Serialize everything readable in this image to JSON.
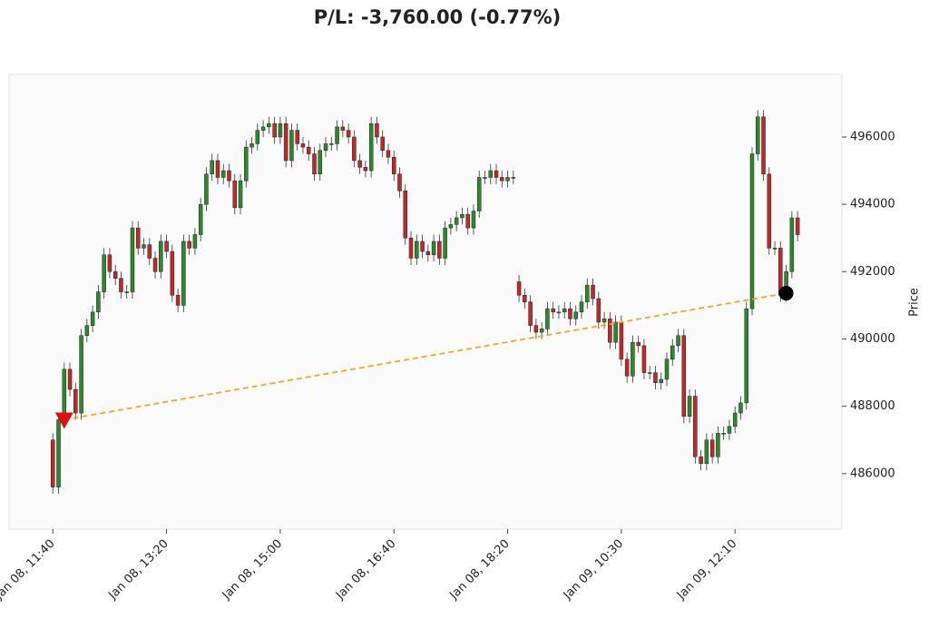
{
  "chart_data": {
    "type": "candlestick",
    "title": "P/L: -3,760.00 (-0.77%)",
    "y_label": "Price",
    "up_color": "#2a8a2a",
    "down_color": "#c0282a",
    "trade_line_color": "#f5a623",
    "ylim": [
      484350,
      497860
    ],
    "yticks": [
      486000,
      488000,
      490000,
      492000,
      494000,
      496000
    ],
    "xlim": [
      -7.7,
      138.8
    ],
    "xticks": [
      {
        "value": 0,
        "label": "Jan 08, 11:40"
      },
      {
        "value": 20,
        "label": "Jan 08, 13:20"
      },
      {
        "value": 40,
        "label": "Jan 08, 15:00"
      },
      {
        "value": 60,
        "label": "Jan 08, 16:40"
      },
      {
        "value": 80,
        "label": "Jan 08, 18:20"
      },
      {
        "value": 100,
        "label": "Jan 09, 10:30"
      },
      {
        "value": 120,
        "label": "Jan 09, 12:10"
      }
    ],
    "open": [
      487000,
      485600,
      487600,
      489100,
      488500,
      487800,
      490100,
      490400,
      490800,
      491400,
      492500,
      492000,
      491800,
      491400,
      491400,
      493300,
      492700,
      492800,
      492400,
      492000,
      492900,
      492600,
      491300,
      491000,
      492900,
      492700,
      493100,
      494000,
      494900,
      495300,
      494800,
      495000,
      494700,
      493900,
      494700,
      495700,
      495800,
      496200,
      496300,
      496400,
      496000,
      496400,
      495300,
      496200,
      495800,
      495700,
      495500,
      494900,
      495600,
      495800,
      495800,
      496300,
      496200,
      496000,
      495300,
      495100,
      495000,
      496400,
      496000,
      495600,
      495400,
      494900,
      494400,
      493000,
      492400,
      492900,
      492600,
      492500,
      492900,
      492400,
      493300,
      493400,
      493600,
      493700,
      493300,
      493800,
      494800,
      494800,
      495000,
      494800,
      494700,
      494800,
      491700,
      491300,
      491100,
      490400,
      490200,
      490300,
      490900,
      490800,
      490800,
      490900,
      490600,
      490800,
      491100,
      491600,
      491200,
      490500,
      490600,
      489900,
      490500,
      489400,
      488900,
      489900,
      489800,
      489000,
      489000,
      488700,
      488800,
      489400,
      489800,
      490100,
      487700,
      488300,
      486500,
      486300,
      487000,
      486500,
      487200,
      487200,
      487400,
      487800,
      488100,
      490900,
      495500,
      496600,
      494900,
      492700,
      492700,
      491300,
      492000,
      493600
    ],
    "high": [
      487200,
      487800,
      489300,
      489300,
      488700,
      490300,
      490600,
      491000,
      491600,
      492700,
      492700,
      492200,
      492000,
      491600,
      493500,
      493500,
      493000,
      493000,
      492600,
      493100,
      493100,
      492800,
      491500,
      493100,
      493100,
      493300,
      494200,
      495100,
      495500,
      495500,
      495200,
      495200,
      494900,
      494900,
      495900,
      496000,
      496400,
      496500,
      496600,
      496600,
      496600,
      496600,
      496400,
      496400,
      496000,
      495900,
      495700,
      495800,
      496000,
      496000,
      496500,
      496500,
      496400,
      496200,
      495500,
      495300,
      496600,
      496600,
      496200,
      495800,
      495600,
      495100,
      494600,
      493200,
      493100,
      493100,
      492800,
      493100,
      493100,
      493500,
      493600,
      493800,
      493900,
      493900,
      494000,
      495000,
      495000,
      495200,
      495200,
      495000,
      495000,
      495000,
      491900,
      491500,
      491300,
      490600,
      490500,
      491100,
      491100,
      491000,
      491100,
      491100,
      491000,
      491300,
      491800,
      491800,
      491400,
      490800,
      490800,
      490700,
      490700,
      489600,
      490100,
      490100,
      490000,
      489200,
      489200,
      489000,
      489600,
      490000,
      490300,
      490300,
      488500,
      488500,
      486700,
      487200,
      487200,
      487400,
      487400,
      487600,
      488000,
      488300,
      491100,
      495700,
      496800,
      496800,
      495100,
      492900,
      492900,
      492200,
      493800,
      493800
    ],
    "low": [
      485400,
      485400,
      487400,
      488300,
      487600,
      487600,
      489900,
      490200,
      490600,
      491200,
      491800,
      491600,
      491200,
      491200,
      491200,
      492500,
      492500,
      492200,
      491800,
      491800,
      492400,
      491100,
      490800,
      490800,
      492500,
      492500,
      492900,
      493800,
      494700,
      494600,
      494600,
      494500,
      493700,
      493700,
      494500,
      495500,
      495600,
      496000,
      496100,
      495800,
      495800,
      495100,
      495100,
      495600,
      495500,
      495300,
      494700,
      494700,
      495400,
      495600,
      495600,
      496000,
      495800,
      495100,
      494900,
      494800,
      494800,
      495800,
      495400,
      495200,
      494700,
      494200,
      492800,
      492200,
      492200,
      492400,
      492300,
      492300,
      492200,
      492200,
      493100,
      493200,
      493400,
      493100,
      493100,
      493600,
      494600,
      494600,
      494600,
      494500,
      494500,
      494600,
      491100,
      490900,
      490200,
      490000,
      490000,
      490100,
      490600,
      490600,
      490600,
      490400,
      490400,
      490600,
      490900,
      491000,
      490300,
      490300,
      489700,
      489700,
      489200,
      488700,
      488700,
      489600,
      488800,
      488800,
      488500,
      488500,
      488600,
      489200,
      489600,
      487500,
      487500,
      486300,
      486100,
      486100,
      486300,
      486300,
      487000,
      487000,
      487200,
      487600,
      487900,
      490700,
      495300,
      494700,
      492500,
      492500,
      491100,
      491100,
      491800,
      492900
    ],
    "close": [
      485600,
      487600,
      489100,
      488500,
      487800,
      490100,
      490400,
      490800,
      491400,
      492500,
      492000,
      491800,
      491400,
      491400,
      493300,
      492700,
      492800,
      492400,
      492000,
      492900,
      492600,
      491300,
      491000,
      492900,
      492700,
      493100,
      494000,
      494900,
      495300,
      494800,
      495000,
      494700,
      493900,
      494700,
      495700,
      495800,
      496200,
      496300,
      496400,
      496000,
      496400,
      495300,
      496200,
      495800,
      495700,
      495500,
      494900,
      495600,
      495800,
      495800,
      496300,
      496200,
      496000,
      495300,
      495100,
      495000,
      496400,
      496000,
      495600,
      495400,
      494900,
      494400,
      493000,
      492400,
      492900,
      492600,
      492500,
      492900,
      492400,
      493300,
      493400,
      493600,
      493700,
      493300,
      493800,
      494800,
      494800,
      495000,
      494800,
      494700,
      494800,
      494800,
      491300,
      491100,
      490400,
      490200,
      490300,
      490900,
      490800,
      490800,
      490900,
      490600,
      490800,
      491100,
      491600,
      491200,
      490500,
      490600,
      489900,
      490500,
      489400,
      488900,
      489900,
      489800,
      489000,
      489000,
      488700,
      488800,
      489400,
      489800,
      490100,
      487700,
      488300,
      486500,
      486300,
      487000,
      486500,
      487200,
      487200,
      487400,
      487800,
      488100,
      490900,
      495500,
      496600,
      494900,
      492700,
      492700,
      491300,
      492000,
      493600,
      493100
    ],
    "entry": {
      "x": 2,
      "price": 487600,
      "color": "#e01010"
    },
    "exit": {
      "x": 129,
      "price": 491360,
      "color": "#000000"
    }
  }
}
